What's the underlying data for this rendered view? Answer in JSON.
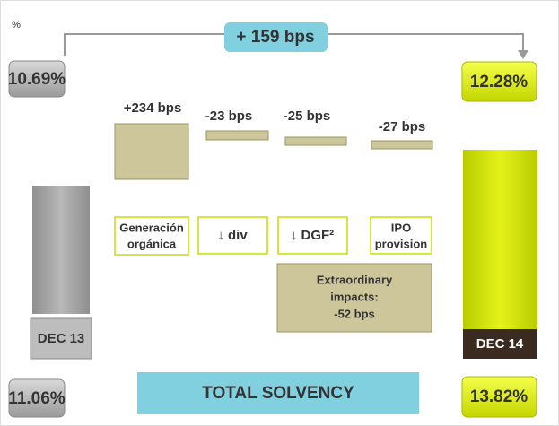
{
  "unit": "%",
  "change": "+ 159 bps",
  "start": {
    "top": "10.69%",
    "label": "DEC 13",
    "bottom": "11.06%"
  },
  "end": {
    "top": "12.28%",
    "label": "DEC 14",
    "bottom": "13.82%"
  },
  "steps": [
    {
      "value": "+234 bps",
      "label": [
        "Generación",
        "orgánica"
      ]
    },
    {
      "value": "-23 bps",
      "label": [
        "↓ div"
      ]
    },
    {
      "value": "-25 bps",
      "label": [
        "↓ DGF²"
      ]
    },
    {
      "value": "-27 bps",
      "label": [
        "IPO",
        "provision"
      ]
    }
  ],
  "extraordinary": [
    "Extraordinary",
    "impacts:",
    "-52 bps"
  ],
  "footer": "TOTAL SOLVENCY"
}
